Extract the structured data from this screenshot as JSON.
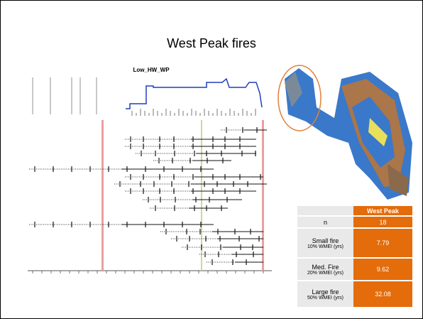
{
  "title": "West Peak fires",
  "chart_title": "Low_HW_WP",
  "table": {
    "header": "West Peak",
    "rows": [
      {
        "label": "n",
        "value": "18"
      },
      {
        "label": "Small fire",
        "sublabel": "10% WMEI (yrs)",
        "value": "7.79"
      },
      {
        "label": "Med. Fire",
        "sublabel": "20% WMEI (yrs)",
        "value": "9.62"
      },
      {
        "label": "Large fire",
        "sublabel": "50% WMEI (yrs)",
        "value": "32.08"
      }
    ]
  }
}
